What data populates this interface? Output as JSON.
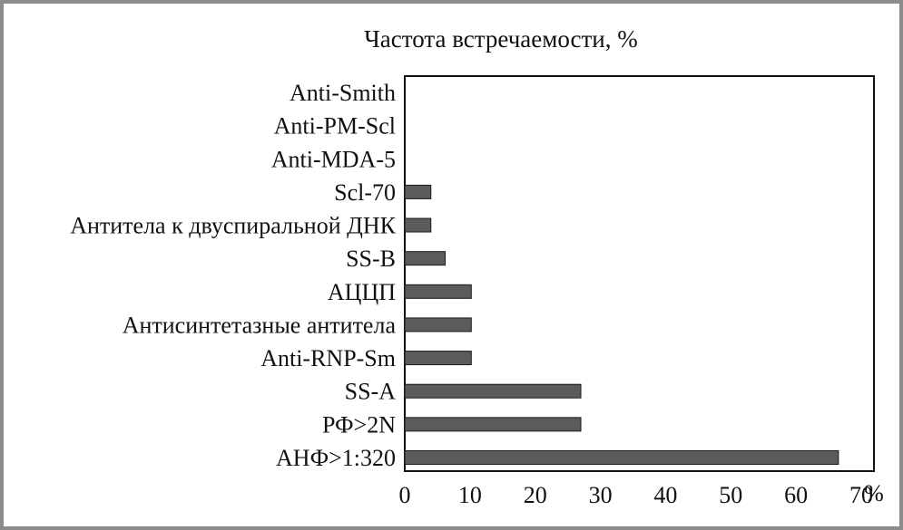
{
  "chart_data": {
    "type": "bar",
    "orientation": "horizontal",
    "title": "Частота встречаемости, %",
    "xlabel": "%",
    "ylabel": "",
    "xlim": [
      0,
      70
    ],
    "xticks": [
      0,
      10,
      20,
      30,
      40,
      50,
      60,
      70
    ],
    "grid": false,
    "categories": [
      "Anti-Smith",
      "Anti-PM-Scl",
      "Anti-MDA-5",
      "Scl-70",
      "Антитела к двуспиральной ДНК",
      "SS-B",
      "АЦЦП",
      "Антисинтетазные антитела",
      "Anti-RNP-Sm",
      "SS-A",
      "РФ>2N",
      "АНФ>1:320"
    ],
    "values": [
      0,
      0,
      0,
      4,
      4,
      6.2,
      10.2,
      10.2,
      10.2,
      27,
      27,
      66.5
    ],
    "colors": {
      "bar": "#5b5b5b",
      "bar_stroke": "#1a1a1a",
      "axis": "#111111",
      "frame": "#8c8c8c"
    }
  }
}
